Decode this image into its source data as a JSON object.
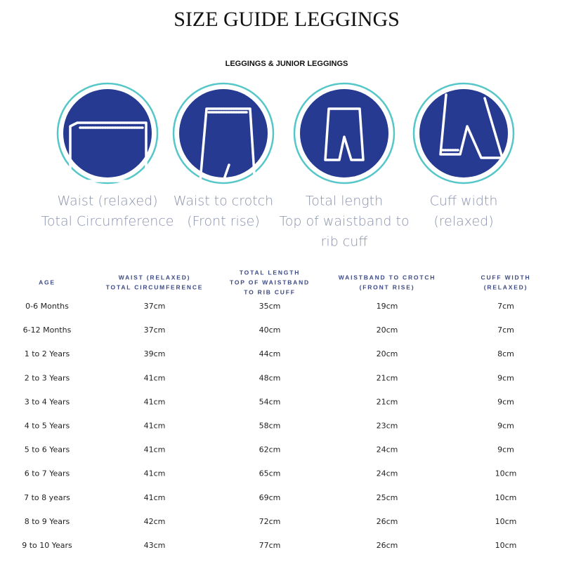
{
  "header": {
    "title": "SIZE GUIDE LEGGINGS",
    "subtitle": "LEGGINGS & JUNIOR LEGGINGS"
  },
  "icons": [
    {
      "lines": [
        "Waist (relaxed)",
        "Total Circumference"
      ]
    },
    {
      "lines": [
        "Waist to crotch",
        "(Front rise)"
      ]
    },
    {
      "lines": [
        "Total length",
        "Top of waistband to",
        "rib cuff"
      ]
    },
    {
      "lines": [
        "Cuff width",
        "(relaxed)"
      ]
    }
  ],
  "table": {
    "columns": [
      {
        "lines": [
          "AGE"
        ]
      },
      {
        "lines": [
          "WAIST (RELAXED)",
          "TOTAL CIRCUMFERENCE"
        ]
      },
      {
        "lines": [
          "TOTAL LENGTH",
          "TOP OF WAISTBAND",
          "TO RIB CUFF"
        ]
      },
      {
        "lines": [
          "WAISTBAND TO CROTCH",
          "(FRONT RISE)"
        ]
      },
      {
        "lines": [
          "CUFF WIDTH",
          "(RELAXED)"
        ]
      }
    ],
    "rows": [
      [
        "0-6 Months",
        "37cm",
        "35cm",
        "19cm",
        "7cm"
      ],
      [
        "6-12 Months",
        "37cm",
        "40cm",
        "20cm",
        "7cm"
      ],
      [
        "1 to 2 Years",
        "39cm",
        "44cm",
        "20cm",
        "8cm"
      ],
      [
        "2 to 3 Years",
        "41cm",
        "48cm",
        "21cm",
        "9cm"
      ],
      [
        "3 to 4 Years",
        "41cm",
        "54cm",
        "21cm",
        "9cm"
      ],
      [
        "4 to 5 Years",
        "41cm",
        "58cm",
        "23cm",
        "9cm"
      ],
      [
        "5 to 6 Years",
        "41cm",
        "62cm",
        "24cm",
        "9cm"
      ],
      [
        "6 to 7 Years",
        "41cm",
        "65cm",
        "24cm",
        "10cm"
      ],
      [
        "7 to 8 years",
        "41cm",
        "69cm",
        "25cm",
        "10cm"
      ],
      [
        "8 to 9 Years",
        "42cm",
        "72cm",
        "26cm",
        "10cm"
      ],
      [
        "9 to 10 Years",
        "43cm",
        "77cm",
        "26cm",
        "10cm"
      ]
    ]
  }
}
